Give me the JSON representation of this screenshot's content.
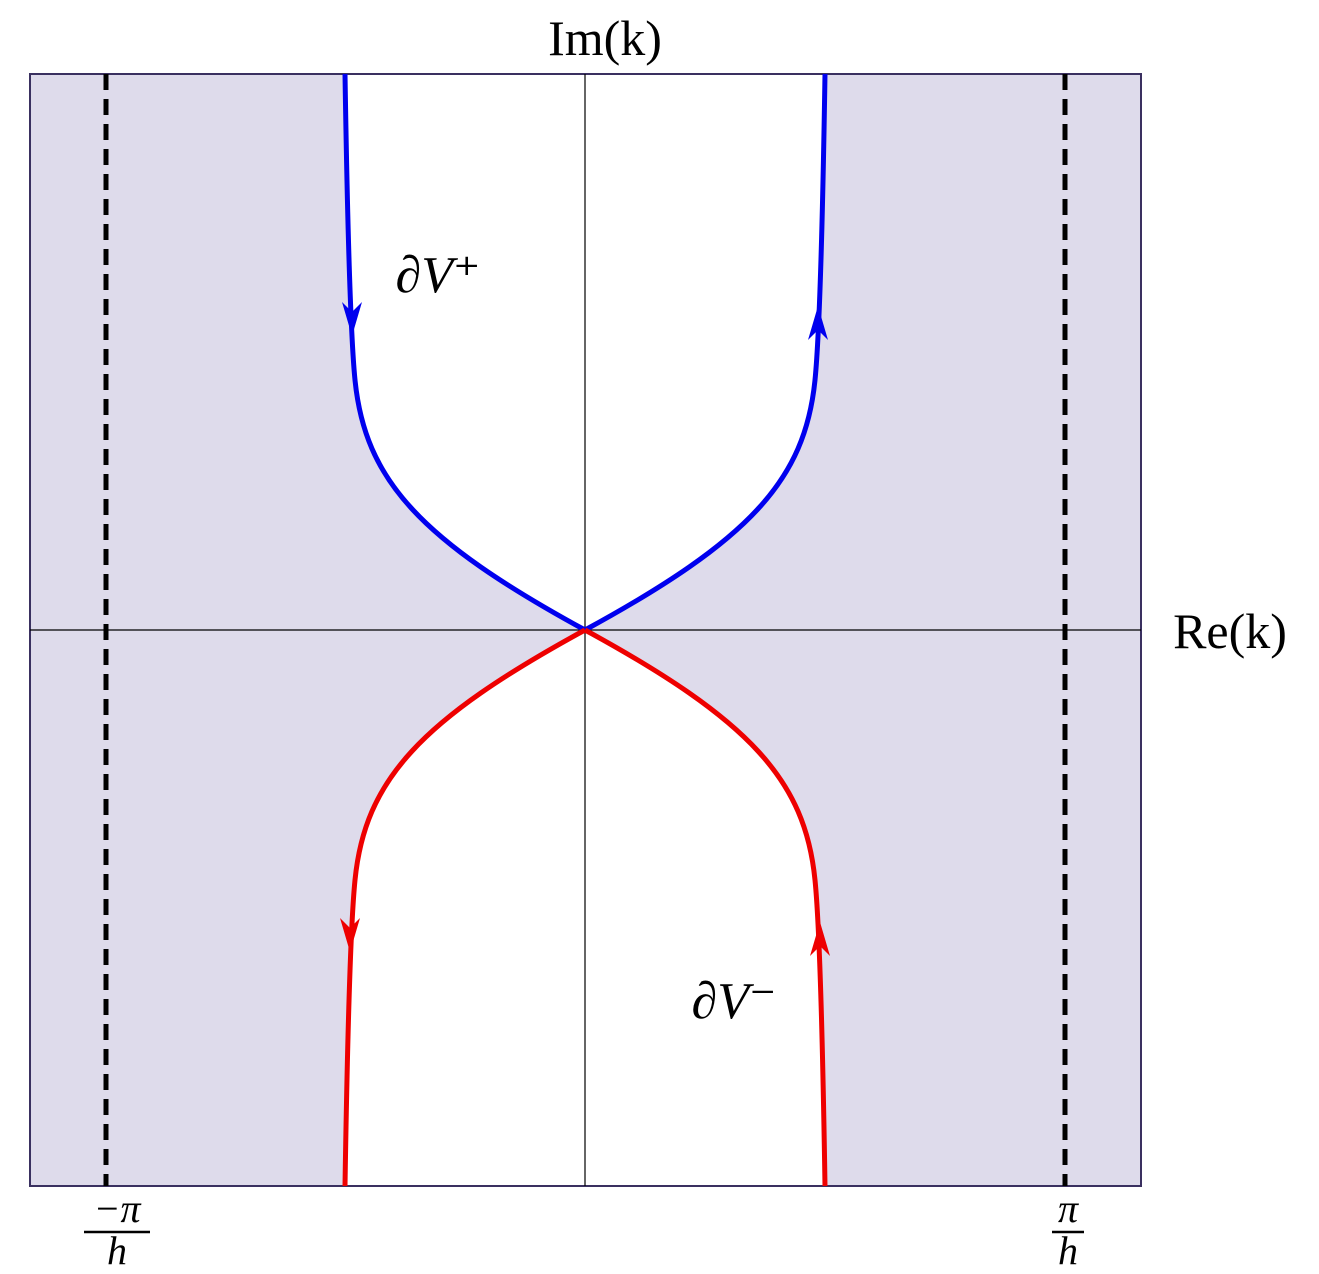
{
  "axes": {
    "vertical_label": "Im(k)",
    "horizontal_label": "Re(k)"
  },
  "curves": {
    "upper_label": "∂V⁺",
    "lower_label": "∂V⁻"
  },
  "markers": {
    "left": {
      "numerator": "−π",
      "denominator": "h"
    },
    "right": {
      "numerator": "π",
      "denominator": "h"
    }
  }
}
